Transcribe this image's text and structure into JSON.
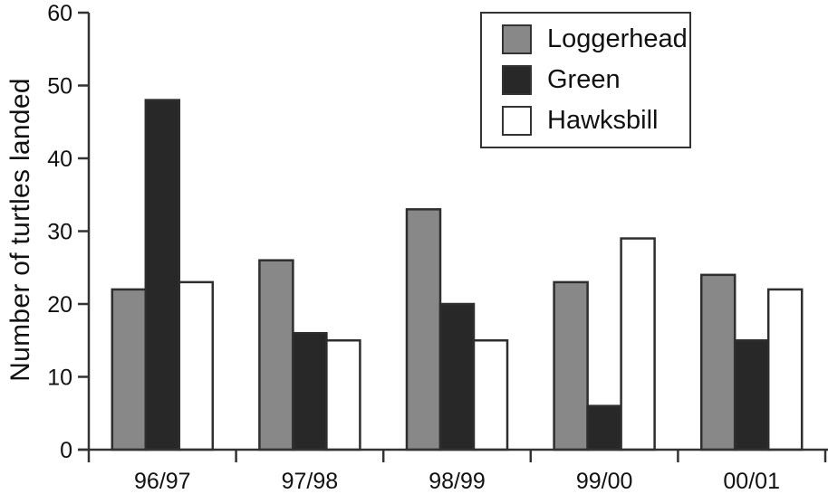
{
  "figure": {
    "background": "#ffffff"
  },
  "chart_data": {
    "type": "bar",
    "title": "",
    "ylabel": "Number of turtles landed",
    "xlabel": "",
    "categories": [
      "96/97",
      "97/98",
      "98/99",
      "99/00",
      "00/01"
    ],
    "series": [
      {
        "name": "Loggerhead",
        "fill": "#888888",
        "values": [
          22,
          26,
          33,
          23,
          24
        ]
      },
      {
        "name": "Green",
        "fill": "#282828",
        "values": [
          48,
          16,
          20,
          6,
          15
        ]
      },
      {
        "name": "Hawksbill",
        "fill": "#ffffff",
        "values": [
          23,
          15,
          15,
          29,
          22
        ]
      }
    ],
    "ylim": [
      0,
      60
    ],
    "yticks": [
      0,
      10,
      20,
      30,
      40,
      50,
      60
    ],
    "grid": false,
    "legend_position": "top-right",
    "bar_border_color": "#2e2e2e",
    "axis_color": "#333333",
    "text_color": "#111111"
  }
}
